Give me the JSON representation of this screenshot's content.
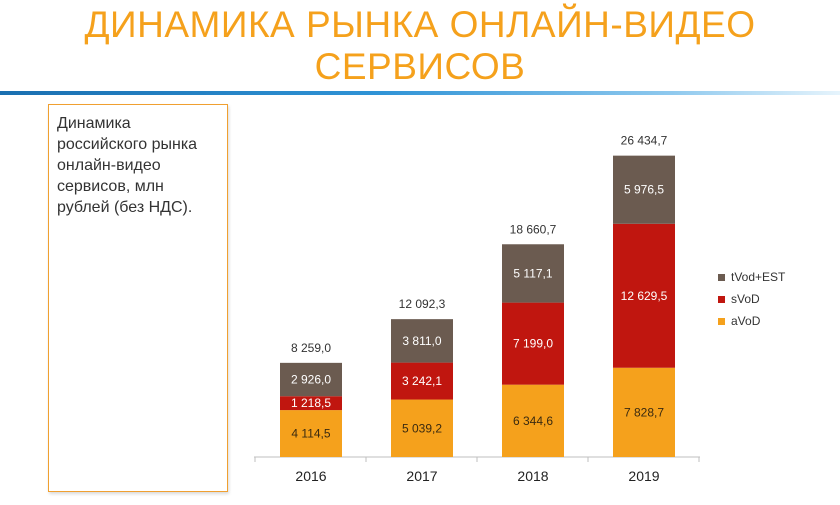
{
  "header": {
    "title_line1": "ДИНАМИКА РЫНКА ОНЛАЙН-ВИДЕО",
    "title_line2": "СЕРВИСОВ"
  },
  "caption": "Динамика российского рынка онлайн-видео сервисов, млн рублей (без НДС).",
  "chart_data": {
    "type": "bar",
    "stacked": true,
    "categories": [
      "2016",
      "2017",
      "2018",
      "2019"
    ],
    "series": [
      {
        "name": "aVoD",
        "values": [
          4114.5,
          5039.2,
          6344.6,
          7828.7
        ],
        "labels": [
          "4 114,5",
          "5 039,2",
          "6 344,6",
          "7 828,7"
        ],
        "color": "#f5a11c"
      },
      {
        "name": "sVoD",
        "values": [
          1218.5,
          3242.1,
          7199.0,
          12629.5
        ],
        "labels": [
          "1 218,5",
          "3 242,1",
          "7 199,0",
          "12 629,5"
        ],
        "color": "#c0160f"
      },
      {
        "name": "tVod+EST",
        "values": [
          2926.0,
          3811.0,
          5117.1,
          5976.5
        ],
        "labels": [
          "2 926,0",
          "3 811,0",
          "5 117,1",
          "5 976,5"
        ],
        "color": "#6b5b50"
      }
    ],
    "totals": [
      8259.0,
      12092.3,
      18660.7,
      26434.7
    ],
    "total_labels": [
      "8 259,0",
      "12 092,3",
      "18 660,7",
      "26 434,7"
    ],
    "ylim": [
      0,
      30000
    ],
    "grid": false,
    "legend_position": "right"
  }
}
